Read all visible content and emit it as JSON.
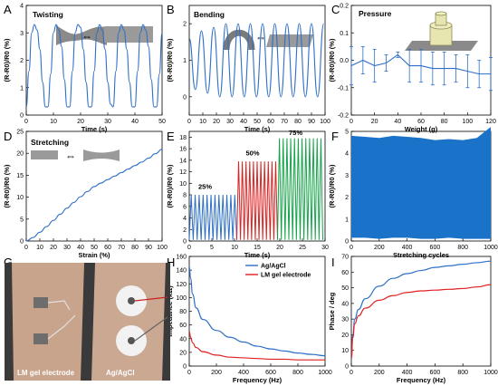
{
  "panels": {
    "A": {
      "letter": "A",
      "title": "Twisting"
    },
    "B": {
      "letter": "B",
      "title": "Bending"
    },
    "C": {
      "letter": "C",
      "title": "Pressure"
    },
    "D": {
      "letter": "D",
      "title": "Stretching"
    },
    "E": {
      "letter": "E"
    },
    "F": {
      "letter": "F"
    },
    "G": {
      "letter": "G",
      "label_left": "LM gel electrode",
      "label_right": "Ag/AgCl"
    },
    "H": {
      "letter": "H"
    },
    "I": {
      "letter": "I"
    }
  },
  "colors": {
    "blue": "#2e6fc7",
    "red": "#e02020",
    "green": "#16a34a",
    "fBlue": "#1a73c9"
  },
  "chart_data": [
    {
      "panel": "A",
      "type": "line",
      "xlabel": "Time (s)",
      "ylabel": "(R-R0)/R0 (%)",
      "xlim": [
        0,
        50
      ],
      "ylim": [
        0,
        4
      ],
      "xticks": [
        "0",
        "10",
        "20",
        "30",
        "40",
        "50"
      ],
      "yticks": [
        "0",
        "1",
        "2",
        "3",
        "4"
      ],
      "series": [
        {
          "color": "#2e6fc7",
          "x": [
            0,
            1,
            2,
            3,
            4,
            5,
            6,
            7,
            8,
            9,
            10,
            11,
            12,
            13,
            14,
            15,
            16,
            17,
            18,
            19,
            20,
            21,
            22,
            23,
            24,
            25,
            26,
            27,
            28,
            29,
            30,
            31,
            32,
            33,
            34,
            35,
            36,
            37,
            38,
            39,
            40,
            41,
            42,
            43,
            44,
            45,
            46,
            47,
            48,
            49,
            50
          ],
          "y": [
            0.3,
            1.6,
            3.0,
            3.3,
            3.1,
            2.4,
            1.2,
            0.3,
            0.3,
            1.5,
            3.0,
            3.3,
            3.1,
            2.5,
            1.3,
            0.3,
            0.3,
            1.6,
            3.0,
            3.3,
            3.2,
            2.4,
            1.2,
            0.3,
            0.3,
            1.6,
            3.0,
            3.3,
            3.1,
            2.4,
            1.2,
            0.4,
            0.3,
            1.6,
            3.0,
            3.3,
            3.1,
            2.4,
            1.2,
            0.3,
            0.3,
            1.6,
            3.0,
            3.3,
            3.1,
            2.5,
            1.3,
            0.3,
            0.3,
            1.5,
            3.0
          ]
        }
      ]
    },
    {
      "panel": "B",
      "type": "line",
      "xlabel": "Time (s)",
      "ylabel": "(R-R0)/R0 (%)",
      "xlim": [
        0,
        100
      ],
      "ylim": [
        -0.5,
        2.5
      ],
      "xticks": [
        "0",
        "10",
        "20",
        "30",
        "40",
        "50",
        "60",
        "70",
        "80",
        "90",
        "100"
      ],
      "yticks": [
        "0",
        "1",
        "2"
      ],
      "series": [
        {
          "color": "#2e6fc7",
          "x": [
            0,
            4.5,
            9,
            13.5,
            18,
            22.5,
            27,
            31.5,
            36,
            40.5,
            45,
            49.5,
            54,
            58.5,
            63,
            67.5,
            72,
            76.5,
            81,
            85.5,
            90,
            94.5,
            99
          ],
          "y": [
            1.6,
            0.2,
            1.8,
            0.1,
            1.9,
            0.0,
            2.0,
            0.0,
            2.0,
            0.0,
            2.0,
            0.0,
            2.0,
            0.0,
            2.0,
            0.0,
            2.0,
            0.0,
            2.0,
            0.0,
            2.0,
            0.0,
            2.0
          ]
        }
      ]
    },
    {
      "panel": "C",
      "type": "line",
      "xlabel": "Weight (g)",
      "ylabel": "(R-R0)/R0 (%)",
      "xlim": [
        0,
        120
      ],
      "ylim": [
        -0.2,
        0.2
      ],
      "xticks": [
        "0",
        "20",
        "40",
        "60",
        "80",
        "100",
        "120"
      ],
      "yticks": [
        "-0.2",
        "-0.1",
        "0.0",
        "0.1",
        "0.2"
      ],
      "series": [
        {
          "color": "#2e6fc7",
          "x": [
            0,
            10,
            20,
            30,
            40,
            50,
            60,
            70,
            80,
            90,
            100,
            110,
            120
          ],
          "y": [
            -0.02,
            0.0,
            -0.02,
            -0.01,
            0.02,
            -0.02,
            -0.02,
            -0.03,
            -0.03,
            -0.03,
            -0.04,
            -0.05,
            -0.05
          ],
          "err": [
            0.07,
            0.05,
            0.06,
            0.03,
            0.01,
            0.06,
            0.06,
            0.06,
            0.06,
            0.05,
            0.06,
            0.05,
            0.06
          ]
        }
      ]
    },
    {
      "panel": "D",
      "type": "line",
      "xlabel": "Strain (%)",
      "ylabel": "(R-R0)/R0 (%)",
      "xlim": [
        0,
        100
      ],
      "ylim": [
        0,
        25
      ],
      "xticks": [
        "0",
        "10",
        "20",
        "30",
        "40",
        "50",
        "60",
        "70",
        "80",
        "90",
        "100"
      ],
      "yticks": [
        "0",
        "5",
        "10",
        "15",
        "20",
        "25"
      ],
      "series": [
        {
          "color": "#2e6fc7",
          "x": [
            0,
            5,
            10,
            15,
            20,
            25,
            30,
            35,
            40,
            45,
            50,
            55,
            60,
            65,
            70,
            75,
            80,
            85,
            90,
            95,
            100
          ],
          "y": [
            0,
            0.8,
            2.0,
            3.3,
            4.7,
            6.1,
            7.5,
            8.8,
            10.1,
            11.3,
            12.4,
            13.2,
            14.0,
            14.8,
            15.6,
            16.4,
            17.2,
            18.0,
            18.9,
            19.9,
            20.9
          ]
        }
      ]
    },
    {
      "panel": "E",
      "type": "line",
      "xlabel": "Time (s)",
      "ylabel": "(R-R0)/R0 (%)",
      "xlim": [
        0,
        30
      ],
      "ylim": [
        0,
        19
      ],
      "xticks": [
        "0",
        "5",
        "10",
        "15",
        "20",
        "25",
        "30"
      ],
      "yticks": [
        "0",
        "2",
        "4",
        "6",
        "8",
        "10",
        "12",
        "14",
        "16",
        "18"
      ],
      "annotations": [
        "25%",
        "50%",
        "75%"
      ],
      "series": [
        {
          "name": "25%",
          "color": "#2e6fc7",
          "t_range": [
            0,
            10.5
          ],
          "low": 0.2,
          "high": 8.0,
          "cycles": 12
        },
        {
          "name": "50%",
          "color": "#e02020",
          "t_range": [
            10.5,
            19.5
          ],
          "low": 0.2,
          "high": 13.8,
          "cycles": 11
        },
        {
          "name": "75%",
          "color": "#16a34a",
          "t_range": [
            19.5,
            29.5
          ],
          "low": 0.2,
          "high": 17.8,
          "cycles": 12
        }
      ]
    },
    {
      "panel": "F",
      "type": "area",
      "xlabel": "Stretching cycles",
      "ylabel": "(R-R0)/R0 (%)",
      "xlim": [
        0,
        1000
      ],
      "ylim": [
        0,
        5
      ],
      "xticks": [
        "0",
        "200",
        "400",
        "600",
        "800",
        "1000"
      ],
      "yticks": [
        "0",
        "1",
        "2",
        "3",
        "4",
        "5"
      ],
      "series": [
        {
          "color": "#1a73c9",
          "x": [
            0,
            100,
            200,
            300,
            400,
            500,
            600,
            700,
            800,
            900,
            1000
          ],
          "high": [
            4.8,
            4.75,
            4.7,
            4.8,
            4.75,
            4.7,
            4.6,
            4.65,
            4.6,
            4.7,
            5.2
          ],
          "low": [
            0.15,
            0.15,
            0.1,
            0.15,
            0.15,
            0.1,
            0.1,
            0.15,
            0.1,
            0.1,
            0.1
          ]
        }
      ]
    },
    {
      "panel": "H",
      "type": "line",
      "xlabel": "Frequency (Hz)",
      "ylabel": "Impedance (kΩ)",
      "xlim": [
        0,
        1000
      ],
      "ylim": [
        0,
        160
      ],
      "xticks": [
        "0",
        "200",
        "400",
        "600",
        "800",
        "1000"
      ],
      "yticks": [
        "0",
        "20",
        "40",
        "60",
        "80",
        "100",
        "120",
        "140",
        "160"
      ],
      "legend": "top-right",
      "series": [
        {
          "name": "Ag/AgCl",
          "color": "#2e6fc7",
          "x": [
            1,
            10,
            25,
            50,
            100,
            200,
            300,
            400,
            500,
            600,
            700,
            800,
            900,
            1000
          ],
          "y": [
            145,
            128,
            105,
            85,
            68,
            52,
            42,
            35,
            29,
            25,
            22,
            19,
            17,
            15
          ]
        },
        {
          "name": "LM gel electrode",
          "color": "#e02020",
          "x": [
            1,
            10,
            25,
            50,
            100,
            200,
            300,
            400,
            500,
            600,
            700,
            800,
            900,
            1000
          ],
          "y": [
            50,
            42,
            34,
            27,
            21,
            16,
            13,
            12,
            11,
            10,
            10,
            9,
            9,
            9
          ]
        }
      ]
    },
    {
      "panel": "I",
      "type": "line",
      "xlabel": "Frequency (Hz)",
      "ylabel": "Phase / deg",
      "xlim": [
        0,
        1000
      ],
      "ylim": [
        0,
        70
      ],
      "xticks": [
        "0",
        "200",
        "400",
        "600",
        "800",
        "1000"
      ],
      "yticks": [
        "0",
        "10",
        "20",
        "30",
        "40",
        "50",
        "60",
        "70"
      ],
      "series": [
        {
          "color": "#2e6fc7",
          "x": [
            1,
            10,
            25,
            50,
            100,
            200,
            300,
            400,
            500,
            600,
            700,
            800,
            900,
            1000
          ],
          "y": [
            5,
            20,
            30,
            36,
            43,
            51,
            56,
            59,
            61,
            63,
            64,
            65,
            66,
            67
          ]
        },
        {
          "color": "#e02020",
          "x": [
            1,
            10,
            25,
            50,
            100,
            200,
            300,
            400,
            500,
            600,
            700,
            800,
            900,
            1000
          ],
          "y": [
            5,
            18,
            27,
            32,
            37,
            42,
            45,
            47,
            48,
            48.5,
            49,
            49.5,
            50.5,
            52
          ]
        }
      ]
    }
  ]
}
